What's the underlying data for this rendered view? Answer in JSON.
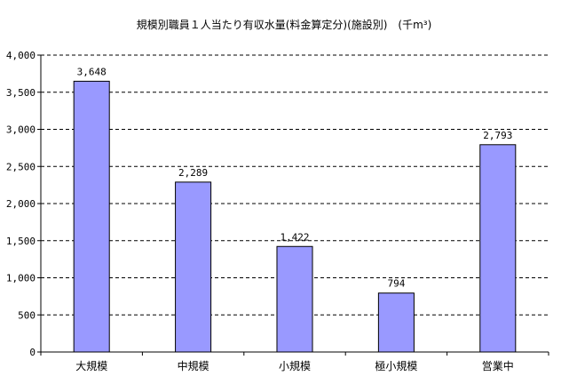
{
  "chart_data": {
    "type": "bar",
    "title": "規模別職員１人当たり有収水量(料金算定分)(施設別)　(千m³)",
    "categories": [
      "大規模",
      "中規模",
      "小規模",
      "極小規模",
      "営業中"
    ],
    "values": [
      3648,
      2289,
      1422,
      794,
      2793
    ],
    "value_labels": [
      "3,648",
      "2,289",
      "1,422",
      "794",
      "2,793"
    ],
    "y_ticks": [
      "0",
      "500",
      "1,000",
      "1,500",
      "2,000",
      "2,500",
      "3,000",
      "3,500",
      "4,000"
    ],
    "ylim": [
      0,
      4000
    ],
    "xlabel": "",
    "ylabel": "",
    "grid": "horizontal dashed",
    "legend": "none",
    "bar_color": "#9999ff",
    "bar_border_color": "#000000"
  }
}
